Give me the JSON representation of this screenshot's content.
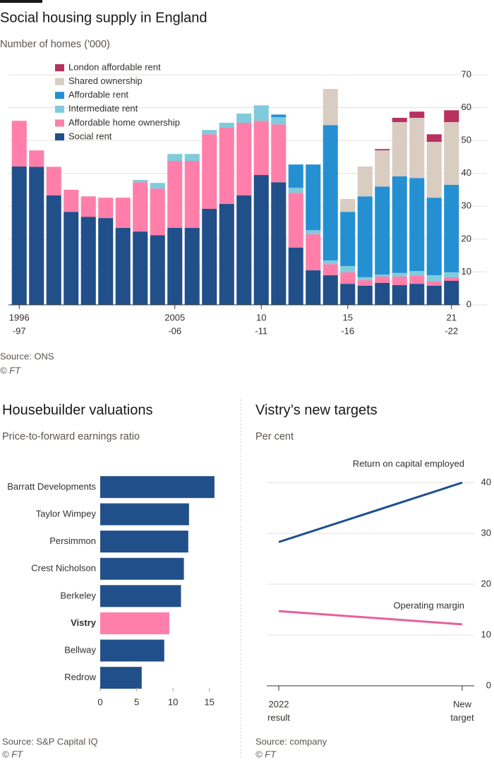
{
  "chart_data": [
    {
      "type": "bar",
      "stacked": true,
      "title": "Social housing supply in England",
      "subtitle": "Number of homes ('000)",
      "source": "Source: ONS",
      "credit": "© FT",
      "categories": [
        [
          "1996",
          "-97"
        ],
        null,
        null,
        null,
        null,
        null,
        null,
        null,
        null,
        [
          "2005",
          "-06"
        ],
        null,
        null,
        null,
        null,
        [
          "10",
          "-11"
        ],
        null,
        null,
        null,
        null,
        [
          "15",
          "-16"
        ],
        null,
        null,
        null,
        null,
        null,
        [
          "21",
          "-22"
        ]
      ],
      "series": [
        {
          "name": "Social rent",
          "color": "#214f8a",
          "values": [
            42.1,
            42,
            33.3,
            28.3,
            26.8,
            26.4,
            23.4,
            22.3,
            21.2,
            23.4,
            23.4,
            29.2,
            30.7,
            33.3,
            39.5,
            37.3,
            17.4,
            10.5,
            9,
            6.4,
            5.8,
            6.7,
            6,
            6.4,
            5.8,
            7.3
          ]
        },
        {
          "name": "Affordable home ownership",
          "color": "#ff7faa",
          "values": [
            13.9,
            5,
            8.7,
            6.7,
            6.2,
            6.2,
            9.2,
            15,
            14.2,
            20.4,
            20.4,
            22.7,
            23.2,
            22.1,
            16.5,
            17.6,
            16.7,
            11,
            3.4,
            3.5,
            1.7,
            1.9,
            2.6,
            2.4,
            1.3,
            1.1
          ]
        },
        {
          "name": "Intermediate rent",
          "color": "#7fcbdc",
          "values": [
            0,
            0,
            0,
            0,
            0,
            0,
            0,
            0.7,
            1.7,
            2.1,
            2.1,
            1.3,
            1.5,
            2.8,
            4.7,
            2.2,
            1.5,
            1.2,
            1.1,
            1.9,
            0.9,
            0.6,
            1.1,
            1.5,
            1.9,
            1.5
          ]
        },
        {
          "name": "Affordable rent",
          "color": "#2490d2",
          "values": [
            0,
            0,
            0,
            0,
            0,
            0,
            0,
            0,
            0,
            0,
            0,
            0,
            0,
            0,
            0,
            0.8,
            7.1,
            20,
            41.2,
            16.5,
            24.6,
            26.8,
            29.4,
            28.3,
            23.6,
            26.6
          ]
        },
        {
          "name": "Shared ownership",
          "color": "#d9ccc1",
          "values": [
            0,
            0,
            0,
            0,
            0,
            0,
            0,
            0,
            0,
            0,
            0,
            0,
            0,
            0,
            0,
            0,
            0,
            0,
            11,
            3.9,
            9.1,
            11,
            16.5,
            18.3,
            17,
            19.1
          ]
        },
        {
          "name": "London affordable rent",
          "color": "#b8315f",
          "values": [
            0,
            0,
            0,
            0,
            0,
            0,
            0,
            0,
            0,
            0,
            0,
            0,
            0,
            0,
            0,
            0,
            0,
            0,
            0,
            0,
            0,
            0.4,
            1.3,
            1.9,
            2.3,
            3.6
          ]
        }
      ],
      "ylim": [
        0,
        70
      ],
      "yticks": [
        0,
        10,
        20,
        30,
        40,
        50,
        60,
        70
      ],
      "grid": true
    },
    {
      "type": "bar",
      "orientation": "horizontal",
      "title": "Housebuilder valuations",
      "subtitle": "Price-to-forward earnings ratio",
      "source": "Source: S&P Capital IQ",
      "credit": "© FT",
      "categories": [
        "Barratt Developments",
        "Taylor Wimpey",
        "Persimmon",
        "Crest Nicholson",
        "Berkeley",
        "Vistry",
        "Bellway",
        "Redrow"
      ],
      "values": [
        15.7,
        12.2,
        12.1,
        11.5,
        11.1,
        9.5,
        8.8,
        5.7
      ],
      "color": "#214f8a",
      "highlight": 5,
      "highlight_color": "#ff7faa",
      "xlim": [
        0,
        16
      ],
      "xticks": [
        0,
        5,
        10,
        15
      ]
    },
    {
      "type": "line",
      "title": "Vistry’s new targets",
      "subtitle": "Per cent",
      "source": "Source: company",
      "credit": "© FT",
      "categories": [
        [
          "2022",
          "result"
        ],
        [
          "New",
          "target"
        ]
      ],
      "series": [
        {
          "name": "Return on capital employed",
          "color": "#1d4f91",
          "values": [
            28.3,
            40
          ]
        },
        {
          "name": "Operating margin",
          "color": "#e8609b",
          "values": [
            14.7,
            12.1
          ]
        }
      ],
      "ylim": [
        0,
        40
      ],
      "yticks": [
        0,
        10,
        20,
        30,
        40
      ],
      "grid": true
    }
  ]
}
